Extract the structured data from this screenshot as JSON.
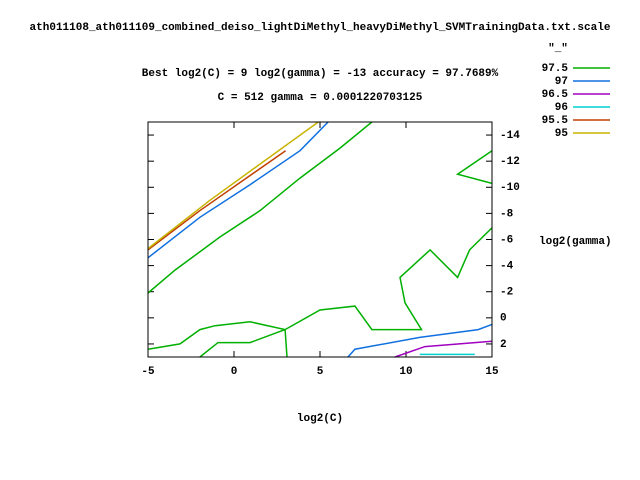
{
  "chart_data": {
    "type": "contour",
    "title": "ath011108_ath011109_combined_deiso_lightDiMethyl_heavyDiMethyl_SVMTrainingData.txt.scale",
    "subtitle": "Best log2(C) = 9  log2(gamma) = -13  accuracy = 97.7689%",
    "subtitle2": "C = 512  gamma = 0.0001220703125",
    "x_label": "log2(C)",
    "y_label": "log2(gamma)",
    "legend_title": "\"_\"",
    "xlim": [
      -5,
      15
    ],
    "xticks": [
      -5,
      0,
      5,
      10,
      15
    ],
    "ylim": [
      -15,
      3
    ],
    "y_reversed": true,
    "y_axis_side": "right",
    "yticks": [
      -14,
      -12,
      -10,
      -8,
      -6,
      -4,
      -2,
      0,
      2
    ],
    "series": [
      {
        "name": "97.5",
        "color": "#00b000",
        "x": [
          -5,
          -3.43,
          -0.81,
          1.5,
          3.84,
          6.16,
          8.02,
          null,
          15,
          13,
          15,
          null,
          15,
          13.7,
          13,
          11.4,
          9.65,
          9.94,
          10.9,
          8.02,
          7.03,
          5,
          2.97,
          0.93,
          -1.1,
          -1.98,
          -3.14,
          -5,
          null,
          -1.98,
          -0.93,
          0.93,
          2.97,
          3.08
        ],
        "values": [
          -1.9,
          -3.66,
          -6.2,
          -8.2,
          -10.7,
          -13,
          -15,
          null,
          -12.8,
          -11,
          -10.3,
          null,
          -6.9,
          -5.2,
          -3.1,
          -5.2,
          -3.1,
          -1.15,
          0.9,
          0.9,
          -0.9,
          -0.6,
          0.9,
          0.3,
          0.6,
          0.9,
          2,
          2.4,
          null,
          3,
          1.9,
          1.9,
          0.9,
          3
        ]
      },
      {
        "name": "97",
        "color": "#1070e0",
        "x": [
          -5,
          -1.98,
          0.93,
          3.84,
          5.47,
          null,
          6.63,
          7.03,
          10.8,
          14.2,
          15
        ],
        "values": [
          -4.6,
          -7.7,
          -10.2,
          -12.8,
          -15,
          null,
          3,
          2.4,
          1.5,
          0.9,
          0.5
        ]
      },
      {
        "name": "96.5",
        "color": "#a000c0",
        "x": [
          9.36,
          11.1,
          13.1,
          15
        ],
        "values": [
          3,
          2.2,
          2,
          1.8
        ]
      },
      {
        "name": "96",
        "color": "#00d0d0",
        "x": [
          10.8,
          14
        ],
        "values": [
          2.8,
          2.8
        ]
      },
      {
        "name": "95.5",
        "color": "#c04000",
        "x": [
          -5,
          -2,
          3
        ],
        "values": [
          -5.2,
          -8.2,
          -12.8
        ]
      },
      {
        "name": "95",
        "color": "#c8b400",
        "x": [
          -5,
          -1.4,
          4.9
        ],
        "values": [
          -5.3,
          -9,
          -15
        ]
      }
    ]
  }
}
